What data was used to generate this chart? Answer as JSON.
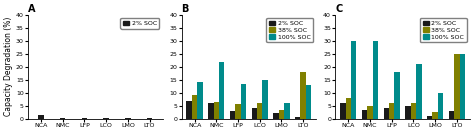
{
  "categories": [
    "NCA",
    "NMC",
    "LFP",
    "LCO",
    "LMO",
    "LTO"
  ],
  "ylim": [
    0,
    40
  ],
  "yticks": [
    0,
    5,
    10,
    15,
    20,
    25,
    30,
    35,
    40
  ],
  "panel_A": {
    "title": "A",
    "soc2": [
      1.5,
      0.2,
      0.1,
      0.1,
      0.1,
      0.1
    ],
    "soc38": [
      0.0,
      0.0,
      0.0,
      0.0,
      0.0,
      0.0
    ],
    "soc100": [
      0.0,
      0.0,
      0.0,
      0.0,
      0.0,
      0.0
    ],
    "legend": [
      "2% SOC"
    ]
  },
  "panel_B": {
    "title": "B",
    "soc2": [
      7.0,
      6.0,
      3.0,
      4.0,
      2.0,
      0.5
    ],
    "soc38": [
      9.0,
      6.5,
      5.5,
      6.0,
      3.5,
      18.0
    ],
    "soc100": [
      14.0,
      22.0,
      13.5,
      15.0,
      6.0,
      13.0
    ],
    "legend": [
      "2% SOC",
      "38% SOC",
      "100% SOC"
    ]
  },
  "panel_C": {
    "title": "C",
    "soc2": [
      6.0,
      3.5,
      4.0,
      5.0,
      1.0,
      3.0
    ],
    "soc38": [
      8.0,
      5.0,
      6.0,
      6.0,
      2.5,
      25.0
    ],
    "soc100": [
      30.0,
      30.0,
      18.0,
      21.0,
      10.0,
      25.0
    ],
    "legend": [
      "2% SOC",
      "38% SOC",
      "100% SOC"
    ]
  },
  "colors": {
    "soc2": "#1a1a1a",
    "soc38": "#808000",
    "soc100": "#008b8b"
  },
  "ylabel": "Capacity Degradation (%)",
  "bar_width": 0.25,
  "fontsize_label": 5.5,
  "fontsize_tick": 4.5,
  "fontsize_legend": 4.5,
  "fontsize_title": 7
}
